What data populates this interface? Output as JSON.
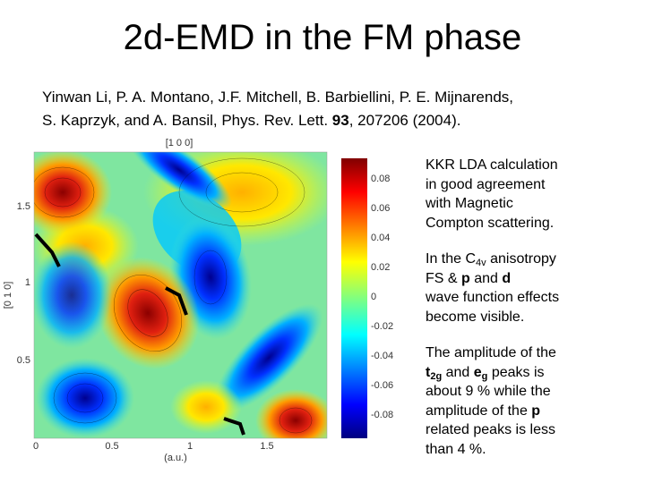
{
  "title": "2d-EMD in the FM phase",
  "citation": [
    [
      {
        "text": "Yinwan Li, P. A. Montano, J.F. Mitchell, B. Barbiellini, P. E. Mijnarends,",
        "style": "normal"
      }
    ],
    [
      {
        "text": "S. Kaprzyk, and A. Bansil, Phys. Rev. Lett. ",
        "style": "normal"
      },
      {
        "text": "93",
        "style": "bold"
      },
      {
        "text": ", 207206 (2004).",
        "style": "normal"
      }
    ]
  ],
  "plot": {
    "top_label": "[1 0 0]",
    "left_label": "[0 1 0]",
    "bottom_label": "(a.u.)",
    "xticks": [
      "0",
      "0.5",
      "1",
      "1.5"
    ],
    "yticks": [
      "1.5",
      "1",
      "0.5"
    ],
    "colorbar_ticks": [
      "0.08",
      "0.06",
      "0.04",
      "0.02",
      "0",
      "-0.02",
      "-0.04",
      "-0.06",
      "-0.08"
    ]
  },
  "right_text": [
    {
      "lines": [
        [
          {
            "text": "KKR LDA calculation",
            "style": "normal"
          }
        ],
        [
          {
            "text": "in good agreement",
            "style": "normal"
          }
        ],
        [
          {
            "text": "with Magnetic",
            "style": "normal"
          }
        ],
        [
          {
            "text": "Compton scattering.",
            "style": "normal"
          }
        ]
      ]
    },
    {
      "lines": [
        [
          {
            "text": "In the C",
            "style": "normal"
          },
          {
            "text": "4v",
            "style": "sub"
          },
          {
            "text": " anisotropy",
            "style": "normal"
          }
        ],
        [
          {
            "text": "FS & ",
            "style": "normal"
          },
          {
            "text": "p",
            "style": "bold"
          },
          {
            "text": " and ",
            "style": "normal"
          },
          {
            "text": "d",
            "style": "bold"
          }
        ],
        [
          {
            "text": "wave function effects",
            "style": "normal"
          }
        ],
        [
          {
            "text": "become visible.",
            "style": "normal"
          }
        ]
      ]
    },
    {
      "lines": [
        [
          {
            "text": "The amplitude of the",
            "style": "normal"
          }
        ],
        [
          {
            "text": "t",
            "style": "bold"
          },
          {
            "text": "2g",
            "style": "bold-sub"
          },
          {
            "text": " and ",
            "style": "normal"
          },
          {
            "text": "e",
            "style": "bold"
          },
          {
            "text": "g",
            "style": "bold-sub"
          },
          {
            "text": " peaks is",
            "style": "normal"
          }
        ],
        [
          {
            "text": "about 9 % while the",
            "style": "normal"
          }
        ],
        [
          {
            "text": "amplitude of the ",
            "style": "normal"
          },
          {
            "text": "p",
            "style": "bold"
          }
        ],
        [
          {
            "text": "related peaks is less",
            "style": "normal"
          }
        ],
        [
          {
            "text": "than 4 %.",
            "style": "normal"
          }
        ]
      ]
    }
  ]
}
